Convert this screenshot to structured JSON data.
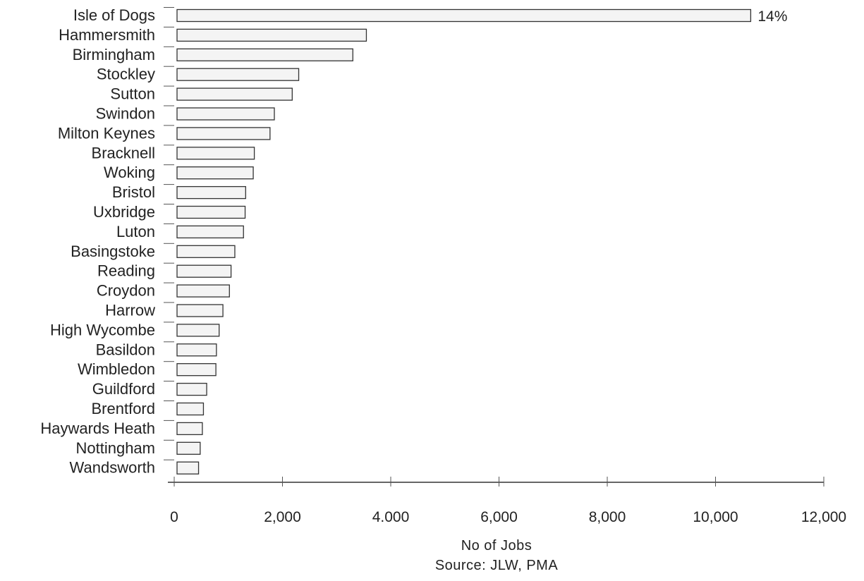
{
  "chart_data": {
    "type": "bar",
    "orientation": "horizontal",
    "categories": [
      "Isle of Dogs",
      "Hammersmith",
      "Birmingham",
      "Stockley",
      "Sutton",
      "Swindon",
      "Milton Keynes",
      "Bracknell",
      "Woking",
      "Bristol",
      "Uxbridge",
      "Luton",
      "Basingstoke",
      "Reading",
      "Croydon",
      "Harrow",
      "High Wycombe",
      "Basildon",
      "Wimbledon",
      "Guildford",
      "Brentford",
      "Haywards Heath",
      "Nottingham",
      "Wandsworth"
    ],
    "values": [
      10650,
      3550,
      3300,
      2300,
      2180,
      1850,
      1770,
      1480,
      1460,
      1320,
      1310,
      1280,
      1120,
      1050,
      1020,
      900,
      830,
      780,
      770,
      600,
      540,
      520,
      480,
      450
    ],
    "data_labels": [
      {
        "category": "Isle of Dogs",
        "text": "14%"
      }
    ],
    "xlabel": "No of Jobs",
    "source": "Source: JLW, PMA",
    "xlim": [
      0,
      12000
    ],
    "xticks": [
      0,
      2000,
      4000,
      6000,
      8000,
      10000,
      12000
    ],
    "xtick_labels": [
      "0",
      "2,000",
      "4.000",
      "6,000",
      "8,000",
      "10,000",
      "12,000"
    ],
    "grid": false,
    "legend": "none"
  }
}
